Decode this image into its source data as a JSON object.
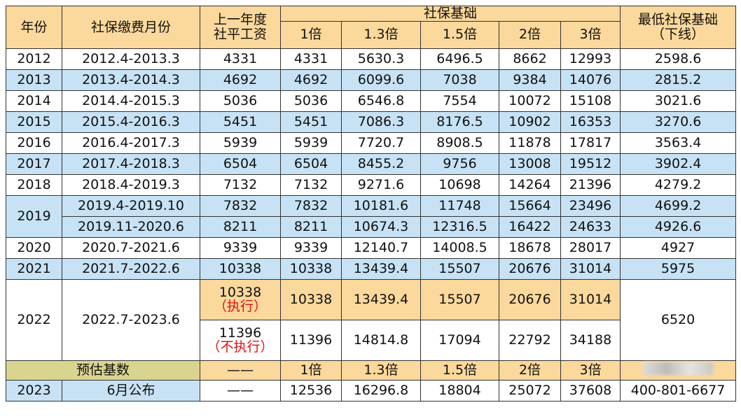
{
  "header": {
    "year": "年份",
    "period": "社保缴费月份",
    "prev_wage": [
      "上一年度",
      "社平工资"
    ],
    "base": "社保基础",
    "multipliers": [
      "1倍",
      "1.3倍",
      "1.5倍",
      "2倍",
      "3倍"
    ],
    "min_base": [
      "最低社保基础",
      "（下线）"
    ]
  },
  "years": [
    {
      "year": "2012",
      "periods": [
        {
          "period": "2012.4-2013.3",
          "min": 2598.6,
          "lines": [
            {
              "wage": 4331,
              "bases": [
                4331,
                5630.3,
                6496.5,
                8662,
                12993
              ]
            }
          ]
        }
      ]
    },
    {
      "year": "2013",
      "periods": [
        {
          "period": "2013.4-2014.3",
          "min": 2815.2,
          "lines": [
            {
              "wage": 4692,
              "bases": [
                4692,
                6099.6,
                7038,
                9384,
                14076
              ]
            }
          ]
        }
      ]
    },
    {
      "year": "2014",
      "periods": [
        {
          "period": "2014.4-2015.3",
          "min": 3021.6,
          "lines": [
            {
              "wage": 5036,
              "bases": [
                5036,
                6546.8,
                7554,
                10072,
                15108
              ]
            }
          ]
        }
      ]
    },
    {
      "year": "2015",
      "periods": [
        {
          "period": "2015.4-2016.3",
          "min": 3270.6,
          "lines": [
            {
              "wage": 5451,
              "bases": [
                5451,
                7086.3,
                8176.5,
                10902,
                16353
              ]
            }
          ]
        }
      ]
    },
    {
      "year": "2016",
      "periods": [
        {
          "period": "2016.4-2017.3",
          "min": 3563.4,
          "lines": [
            {
              "wage": 5939,
              "bases": [
                5939,
                7720.7,
                8908.5,
                11878,
                17817
              ]
            }
          ]
        }
      ]
    },
    {
      "year": "2017",
      "periods": [
        {
          "period": "2017.4-2018.3",
          "min": 3902.4,
          "lines": [
            {
              "wage": 6504,
              "bases": [
                6504,
                8455.2,
                9756,
                13008,
                19512
              ]
            }
          ]
        }
      ]
    },
    {
      "year": "2018",
      "periods": [
        {
          "period": "2018.4-2019.3",
          "min": 4279.2,
          "lines": [
            {
              "wage": 7132,
              "bases": [
                7132,
                9271.6,
                10698,
                14264,
                21396
              ]
            }
          ]
        }
      ]
    },
    {
      "year": "2019",
      "periods": [
        {
          "period": "2019.4-2019.10",
          "min": 4699.2,
          "lines": [
            {
              "wage": 7832,
              "bases": [
                7832,
                10181.6,
                11748,
                15664,
                23496
              ]
            }
          ]
        },
        {
          "period": "2019.11-2020.6",
          "min": 4926.6,
          "lines": [
            {
              "wage": 8211,
              "bases": [
                8211,
                10674.3,
                12316.5,
                16422,
                24633
              ]
            }
          ]
        }
      ]
    },
    {
      "year": "2020",
      "periods": [
        {
          "period": "2020.7-2021.6",
          "min": 4927,
          "lines": [
            {
              "wage": 9339,
              "bases": [
                9339,
                12140.7,
                14008.5,
                18678,
                28017
              ]
            }
          ]
        }
      ]
    },
    {
      "year": "2021",
      "periods": [
        {
          "period": "2021.7-2022.6",
          "min": 5975,
          "lines": [
            {
              "wage": 10338,
              "bases": [
                10338,
                13439.4,
                15507,
                20676,
                31014
              ]
            }
          ]
        }
      ]
    },
    {
      "year": "2022",
      "periods": [
        {
          "period": "2022.7-2023.6",
          "min": 6520,
          "lines": [
            {
              "wage": 10338,
              "note": "（执行）",
              "bases": [
                10338,
                13439.4,
                15507,
                20676,
                31014
              ]
            },
            {
              "wage": 11396,
              "note": "（不执行）",
              "bases": [
                11396,
                14814.8,
                17094,
                22792,
                34188
              ]
            }
          ]
        }
      ]
    }
  ],
  "estimate": {
    "label": "预估基数",
    "wage": "——",
    "multipliers": [
      "1倍",
      "1.3倍",
      "1.5倍",
      "2倍",
      "3倍"
    ]
  },
  "final": {
    "year": "2023",
    "period": "6月公布",
    "wage": "——",
    "bases": [
      12536,
      16296.8,
      18804,
      25072,
      37608
    ],
    "min": "400-801-6677"
  }
}
